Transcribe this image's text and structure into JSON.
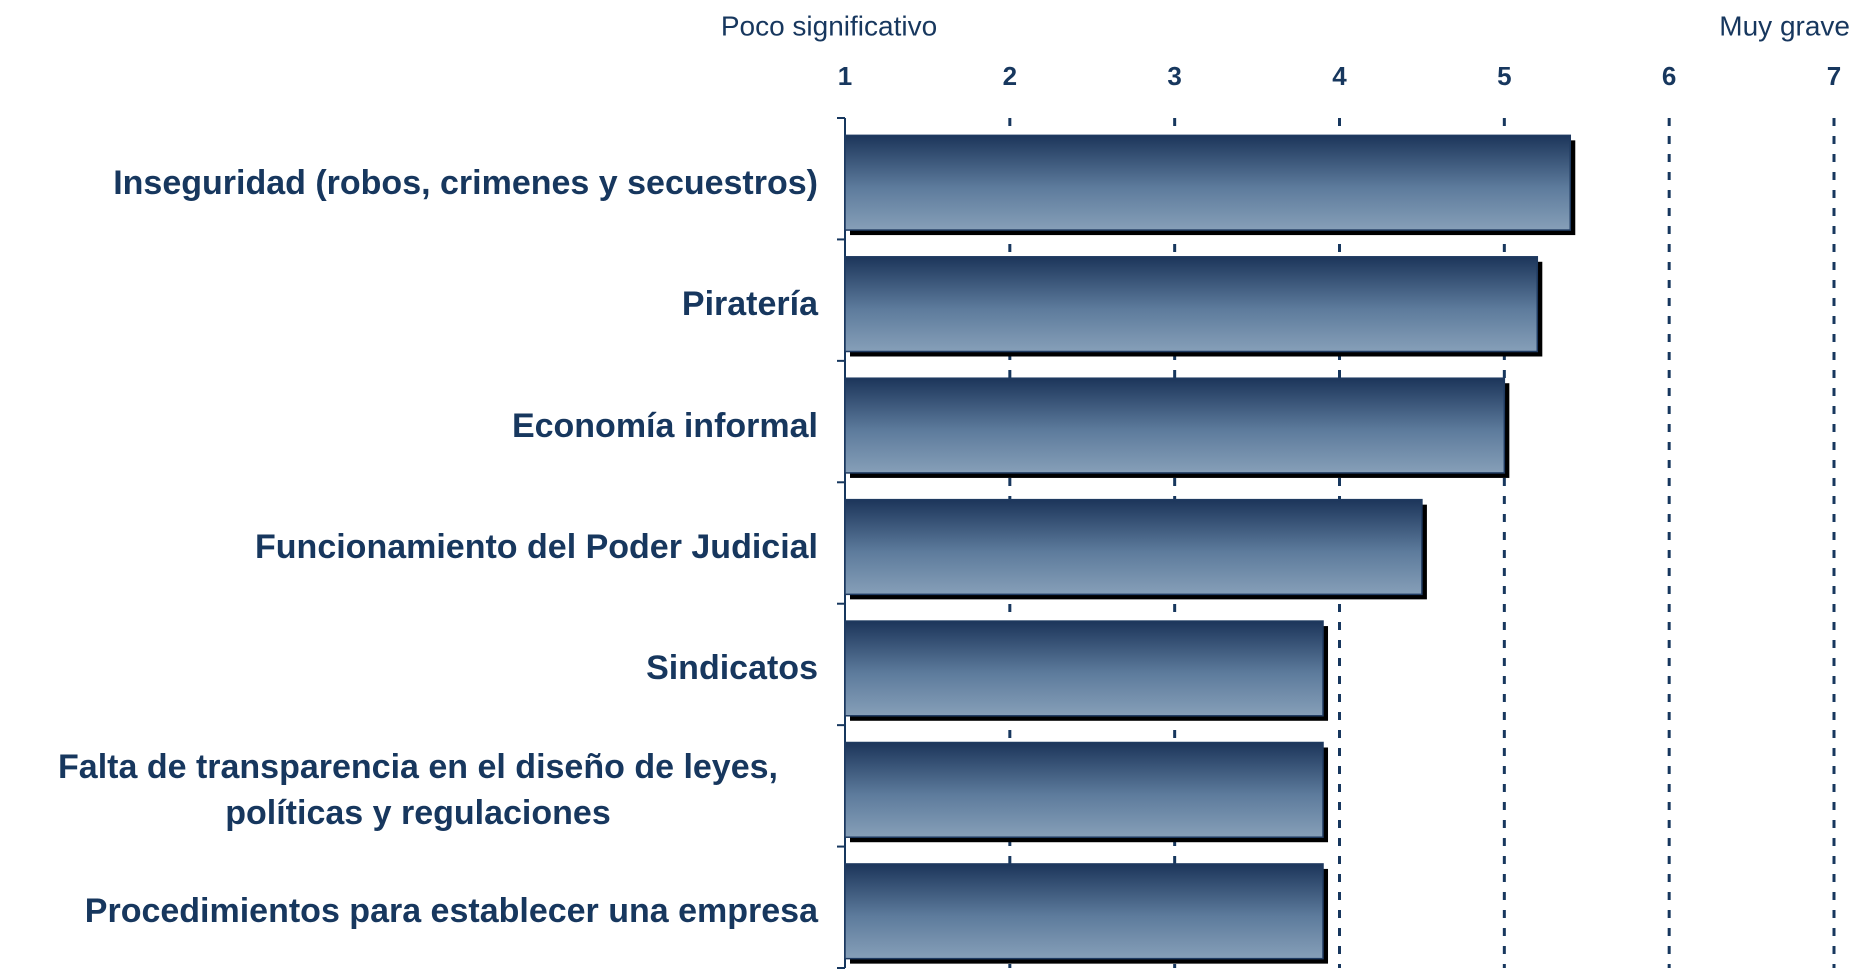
{
  "chart_data": {
    "type": "barh",
    "annotations": [
      "Poco significativo",
      "Muy grave"
    ],
    "categories": [
      "Inseguridad (robos, crimenes y secuestros)",
      "Piratería",
      "Economía informal",
      "Funcionamiento del Poder Judicial",
      "Sindicatos",
      "Falta de transparencia en el diseño de leyes, políticas y regulaciones",
      "Procedimientos para establecer una empresa"
    ],
    "values": [
      5.4,
      5.2,
      5.0,
      4.5,
      3.9,
      3.9,
      3.9
    ],
    "color": "#1f3a60",
    "xlim": [
      1,
      7
    ],
    "xticks": [
      1,
      2,
      3,
      4,
      5,
      6,
      7
    ],
    "grid": true
  }
}
